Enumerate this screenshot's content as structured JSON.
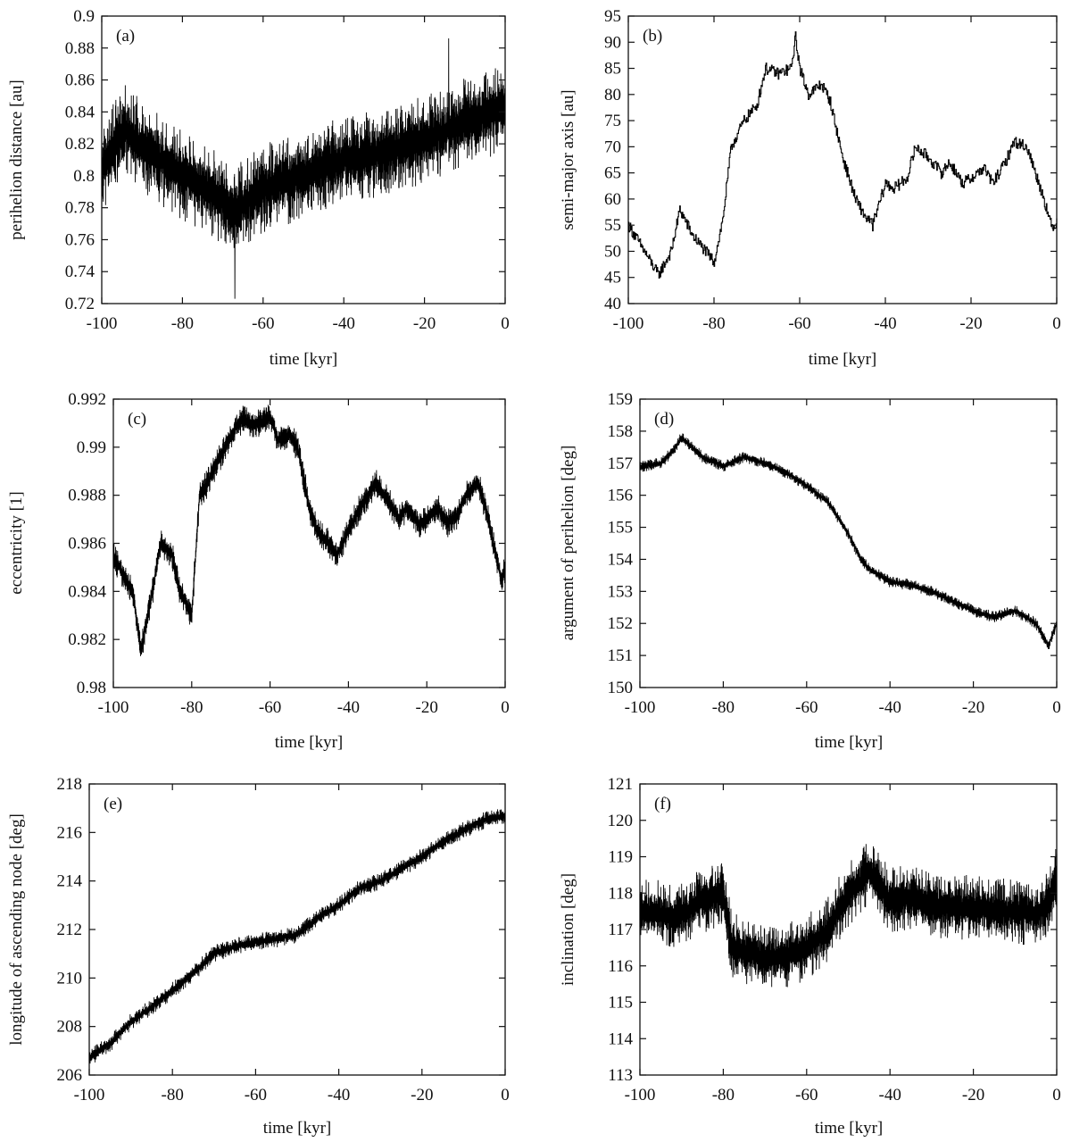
{
  "chart_data": [
    {
      "panel": "(a)",
      "type": "line",
      "xlabel": "time [kyr]",
      "ylabel": "perihelion distance [au]",
      "xlim": [
        -100,
        0
      ],
      "ylim": [
        0.72,
        0.9
      ],
      "xticks": [
        "-100",
        "-80",
        "-60",
        "-40",
        "-20",
        "0"
      ],
      "yticks": [
        "0.72",
        "0.74",
        "0.76",
        "0.78",
        "0.8",
        "0.82",
        "0.84",
        "0.86",
        "0.88",
        "0.9"
      ],
      "ytick_values": [
        0.72,
        0.74,
        0.76,
        0.78,
        0.8,
        0.82,
        0.84,
        0.86,
        0.88,
        0.9
      ],
      "trend": {
        "x": [
          -100,
          -94,
          -90,
          -80,
          -70,
          -67,
          -60,
          -50,
          -40,
          -30,
          -20,
          -10,
          0
        ],
        "y": [
          0.805,
          0.83,
          0.818,
          0.8,
          0.785,
          0.778,
          0.792,
          0.8,
          0.81,
          0.815,
          0.823,
          0.833,
          0.843
        ]
      },
      "noise": 0.028,
      "extremes": {
        "min": [
          -67,
          0.723
        ],
        "max": [
          -14,
          0.886
        ]
      }
    },
    {
      "panel": "(b)",
      "type": "line",
      "xlabel": "time [kyr]",
      "ylabel": "semi-major axis [au]",
      "xlim": [
        -100,
        0
      ],
      "ylim": [
        40,
        95
      ],
      "xticks": [
        "-100",
        "-80",
        "-60",
        "-40",
        "-20",
        "0"
      ],
      "yticks": [
        "40",
        "45",
        "50",
        "55",
        "60",
        "65",
        "70",
        "75",
        "80",
        "85",
        "90",
        "95"
      ],
      "ytick_values": [
        40,
        45,
        50,
        55,
        60,
        65,
        70,
        75,
        80,
        85,
        90,
        95
      ],
      "trend": {
        "x": [
          -100,
          -97,
          -93,
          -90,
          -88,
          -85,
          -82,
          -80,
          -78,
          -76,
          -73,
          -70,
          -68,
          -65,
          -62,
          -61,
          -60,
          -58,
          -55,
          -53,
          -50,
          -47,
          -45,
          -43,
          -40,
          -38,
          -35,
          -33,
          -30,
          -27,
          -25,
          -22,
          -20,
          -17,
          -15,
          -12,
          -10,
          -7,
          -5,
          -3,
          -1,
          0
        ],
        "y": [
          55,
          51,
          45.5,
          50,
          58,
          53,
          50,
          48,
          56,
          70,
          75,
          78,
          85,
          84,
          85,
          91,
          85,
          80,
          82,
          79,
          68,
          60,
          57,
          55,
          63,
          62,
          64,
          70,
          68,
          65,
          67,
          63,
          64,
          66,
          63,
          67,
          71,
          70,
          65,
          60,
          54,
          56
        ]
      },
      "noise": 2.2,
      "step": true
    },
    {
      "panel": "(c)",
      "type": "line",
      "xlabel": "time [kyr]",
      "ylabel": "eccentricity [1]",
      "xlim": [
        -100,
        0
      ],
      "ylim": [
        0.98,
        0.992
      ],
      "xticks": [
        "-100",
        "-80",
        "-60",
        "-40",
        "-20",
        "0"
      ],
      "yticks": [
        "0.98",
        "0.982",
        "0.984",
        "0.986",
        "0.988",
        "0.99",
        "0.992"
      ],
      "ytick_values": [
        0.98,
        0.982,
        0.984,
        0.986,
        0.988,
        0.99,
        0.992
      ],
      "trend": {
        "x": [
          -100,
          -97,
          -95,
          -93,
          -90,
          -88,
          -85,
          -83,
          -80,
          -78,
          -76,
          -73,
          -70,
          -67,
          -65,
          -62,
          -60,
          -58,
          -55,
          -53,
          -50,
          -48,
          -45,
          -43,
          -40,
          -37,
          -35,
          -33,
          -30,
          -27,
          -25,
          -22,
          -20,
          -17,
          -15,
          -12,
          -10,
          -7,
          -5,
          -3,
          -1,
          0
        ],
        "y": [
          0.9855,
          0.9845,
          0.984,
          0.9815,
          0.984,
          0.986,
          0.9855,
          0.984,
          0.983,
          0.988,
          0.9885,
          0.9895,
          0.9905,
          0.9912,
          0.991,
          0.991,
          0.9913,
          0.9903,
          0.9905,
          0.99,
          0.9875,
          0.9865,
          0.986,
          0.9855,
          0.9865,
          0.9875,
          0.988,
          0.9885,
          0.9878,
          0.987,
          0.9875,
          0.9868,
          0.987,
          0.9875,
          0.9868,
          0.9872,
          0.988,
          0.9885,
          0.9875,
          0.986,
          0.9845,
          0.985
        ]
      },
      "noise": 0.0006
    },
    {
      "panel": "(d)",
      "type": "line",
      "xlabel": "time [kyr]",
      "ylabel": "argument of perihelion [deg]",
      "xlim": [
        -100,
        0
      ],
      "ylim": [
        150,
        159
      ],
      "xticks": [
        "-100",
        "-80",
        "-60",
        "-40",
        "-20",
        "0"
      ],
      "yticks": [
        "150",
        "151",
        "152",
        "153",
        "154",
        "155",
        "156",
        "157",
        "158",
        "159"
      ],
      "ytick_values": [
        150,
        151,
        152,
        153,
        154,
        155,
        156,
        157,
        158,
        159
      ],
      "trend": {
        "x": [
          -100,
          -95,
          -92,
          -90,
          -85,
          -80,
          -75,
          -70,
          -65,
          -60,
          -55,
          -50,
          -47,
          -45,
          -40,
          -35,
          -30,
          -25,
          -20,
          -15,
          -10,
          -5,
          -2,
          0
        ],
        "y": [
          156.9,
          157.0,
          157.4,
          157.8,
          157.2,
          156.9,
          157.2,
          157.0,
          156.7,
          156.3,
          155.8,
          154.8,
          154.0,
          153.7,
          153.3,
          153.2,
          153.0,
          152.7,
          152.4,
          152.2,
          152.4,
          152.0,
          151.3,
          152.0
        ]
      },
      "noise": 0.18
    },
    {
      "panel": "(e)",
      "type": "line",
      "xlabel": "time [kyr]",
      "ylabel": "longitude of ascending node [deg]",
      "xlim": [
        -100,
        0
      ],
      "ylim": [
        206,
        218
      ],
      "xticks": [
        "-100",
        "-80",
        "-60",
        "-40",
        "-20",
        "0"
      ],
      "yticks": [
        "206",
        "208",
        "210",
        "212",
        "214",
        "216",
        "218"
      ],
      "ytick_values": [
        206,
        208,
        210,
        212,
        214,
        216,
        218
      ],
      "trend": {
        "x": [
          -100,
          -95,
          -90,
          -85,
          -80,
          -75,
          -70,
          -65,
          -60,
          -55,
          -50,
          -45,
          -40,
          -35,
          -30,
          -25,
          -20,
          -15,
          -10,
          -5,
          0
        ],
        "y": [
          206.7,
          207.3,
          208.2,
          208.8,
          209.5,
          210.2,
          211.0,
          211.3,
          211.5,
          211.6,
          211.8,
          212.5,
          213.0,
          213.7,
          214.0,
          214.5,
          215.0,
          215.6,
          216.1,
          216.5,
          216.7
        ]
      },
      "noise": 0.35
    },
    {
      "panel": "(f)",
      "type": "line",
      "xlabel": "time [kyr]",
      "ylabel": "inclination [deg]",
      "xlim": [
        -100,
        0
      ],
      "ylim": [
        113,
        121
      ],
      "xticks": [
        "-100",
        "-80",
        "-60",
        "-40",
        "-20",
        "0"
      ],
      "yticks": [
        "113",
        "114",
        "115",
        "116",
        "117",
        "118",
        "119",
        "120",
        "121"
      ],
      "ytick_values": [
        113,
        114,
        115,
        116,
        117,
        118,
        119,
        120,
        121
      ],
      "trend": {
        "x": [
          -100,
          -90,
          -85,
          -80,
          -78,
          -75,
          -70,
          -65,
          -60,
          -55,
          -52,
          -48,
          -45,
          -40,
          -35,
          -30,
          -25,
          -20,
          -15,
          -10,
          -5,
          -2,
          0
        ],
        "y": [
          117.5,
          117.4,
          117.8,
          118.0,
          116.6,
          116.4,
          116.2,
          116.3,
          116.5,
          117.0,
          117.6,
          118.2,
          118.6,
          117.8,
          117.9,
          117.7,
          117.6,
          117.6,
          117.5,
          117.5,
          117.4,
          117.7,
          118.4
        ]
      },
      "noise": 0.9
    }
  ]
}
